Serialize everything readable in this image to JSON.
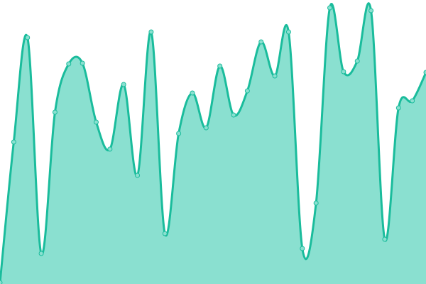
{
  "chart_data": {
    "type": "area",
    "title": "",
    "xlabel": "",
    "ylabel": "",
    "x": [
      0,
      1,
      2,
      3,
      4,
      5,
      6,
      7,
      8,
      9,
      10,
      11,
      12,
      13,
      14,
      15,
      16,
      17,
      18,
      19,
      20,
      21,
      22,
      23,
      24,
      25,
      26,
      27,
      28,
      29,
      30,
      31
    ],
    "values": [
      2,
      200,
      347,
      43,
      242,
      310,
      311,
      228,
      190,
      281,
      153,
      355,
      71,
      212,
      269,
      220,
      307,
      238,
      272,
      341,
      293,
      355,
      50,
      114,
      389,
      299,
      314,
      385,
      63,
      248,
      258,
      298
    ],
    "ylim": [
      0,
      400
    ],
    "grid": false,
    "axes_visible": false,
    "smooth": true,
    "markers": true,
    "colors": {
      "line": "#1abc9c",
      "fill": "#8ae0d0",
      "marker_fill": "#8ae0d0",
      "marker_stroke": "#1abc9c"
    }
  }
}
